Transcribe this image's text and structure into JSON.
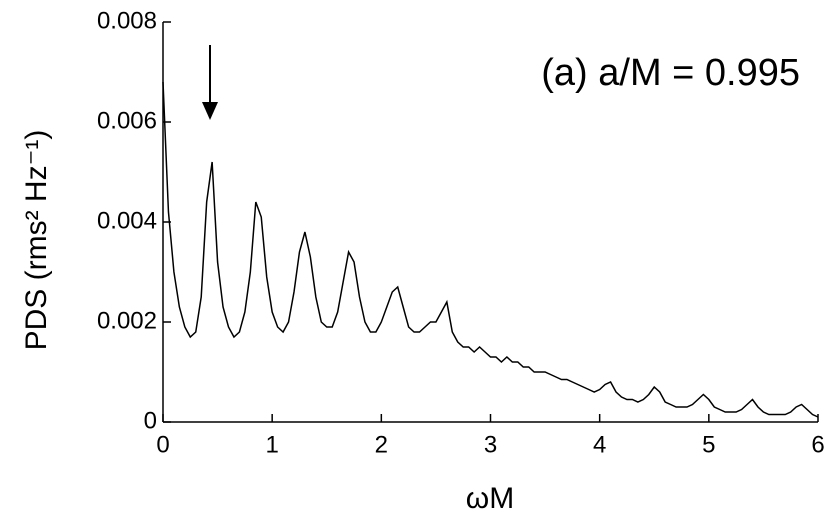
{
  "chart_data": {
    "type": "line",
    "xlabel": "ωM",
    "ylabel": "PDS (rms² Hz⁻¹)",
    "annotation": "(a) a/M = 0.995",
    "xlim": [
      0,
      6
    ],
    "xticks": [
      0,
      1,
      2,
      3,
      4,
      5,
      6
    ],
    "ylim": [
      0,
      0.008
    ],
    "yticks": [
      0,
      0.002,
      0.004,
      0.006,
      0.008
    ],
    "x": [
      0,
      0.05,
      0.1,
      0.15,
      0.2,
      0.25,
      0.3,
      0.35,
      0.4,
      0.45,
      0.5,
      0.55,
      0.6,
      0.65,
      0.7,
      0.75,
      0.8,
      0.85,
      0.9,
      0.95,
      1,
      1.05,
      1.1,
      1.15,
      1.2,
      1.25,
      1.3,
      1.35,
      1.4,
      1.45,
      1.5,
      1.55,
      1.6,
      1.65,
      1.7,
      1.75,
      1.8,
      1.85,
      1.9,
      1.95,
      2,
      2.05,
      2.1,
      2.15,
      2.2,
      2.25,
      2.3,
      2.35,
      2.4,
      2.45,
      2.5,
      2.55,
      2.6,
      2.65,
      2.7,
      2.75,
      2.8,
      2.85,
      2.9,
      2.95,
      3,
      3.05,
      3.1,
      3.15,
      3.2,
      3.25,
      3.3,
      3.35,
      3.4,
      3.45,
      3.5,
      3.55,
      3.6,
      3.65,
      3.7,
      3.75,
      3.8,
      3.85,
      3.9,
      3.95,
      4,
      4.05,
      4.1,
      4.15,
      4.2,
      4.25,
      4.3,
      4.35,
      4.4,
      4.45,
      4.5,
      4.55,
      4.6,
      4.65,
      4.7,
      4.75,
      4.8,
      4.85,
      4.9,
      4.95,
      5,
      5.05,
      5.1,
      5.15,
      5.2,
      5.25,
      5.3,
      5.35,
      5.4,
      5.45,
      5.5,
      5.55,
      5.6,
      5.65,
      5.7,
      5.75,
      5.8,
      5.85,
      5.9,
      5.95,
      6
    ],
    "series": [
      {
        "color": "#000000",
        "values": [
          0.0068,
          0.0042,
          0.003,
          0.0023,
          0.0019,
          0.0017,
          0.0018,
          0.0025,
          0.0044,
          0.0052,
          0.0032,
          0.0023,
          0.0019,
          0.0017,
          0.0018,
          0.0022,
          0.003,
          0.0044,
          0.0041,
          0.0029,
          0.0022,
          0.0019,
          0.0018,
          0.002,
          0.0026,
          0.0034,
          0.0038,
          0.0033,
          0.0025,
          0.002,
          0.0019,
          0.0019,
          0.0022,
          0.0028,
          0.0034,
          0.0032,
          0.0025,
          0.002,
          0.0018,
          0.0018,
          0.002,
          0.0023,
          0.0026,
          0.0027,
          0.0023,
          0.0019,
          0.0018,
          0.0018,
          0.0019,
          0.002,
          0.002,
          0.0022,
          0.0024,
          0.0018,
          0.0016,
          0.0015,
          0.0015,
          0.0014,
          0.0015,
          0.0014,
          0.0013,
          0.0013,
          0.0012,
          0.0013,
          0.0012,
          0.0012,
          0.0011,
          0.0011,
          0.001,
          0.001,
          0.001,
          0.00095,
          0.0009,
          0.00085,
          0.00085,
          0.0008,
          0.00075,
          0.0007,
          0.00065,
          0.0006,
          0.00065,
          0.00075,
          0.0008,
          0.0006,
          0.0005,
          0.00045,
          0.00045,
          0.0004,
          0.00045,
          0.00055,
          0.0007,
          0.0006,
          0.0004,
          0.00035,
          0.0003,
          0.0003,
          0.0003,
          0.00035,
          0.00045,
          0.00055,
          0.00045,
          0.0003,
          0.00025,
          0.0002,
          0.0002,
          0.0002,
          0.00025,
          0.00035,
          0.00045,
          0.0003,
          0.0002,
          0.00015,
          0.00015,
          0.00015,
          0.00015,
          0.0002,
          0.0003,
          0.00035,
          0.00025,
          0.00015,
          0.0001
        ]
      }
    ]
  }
}
